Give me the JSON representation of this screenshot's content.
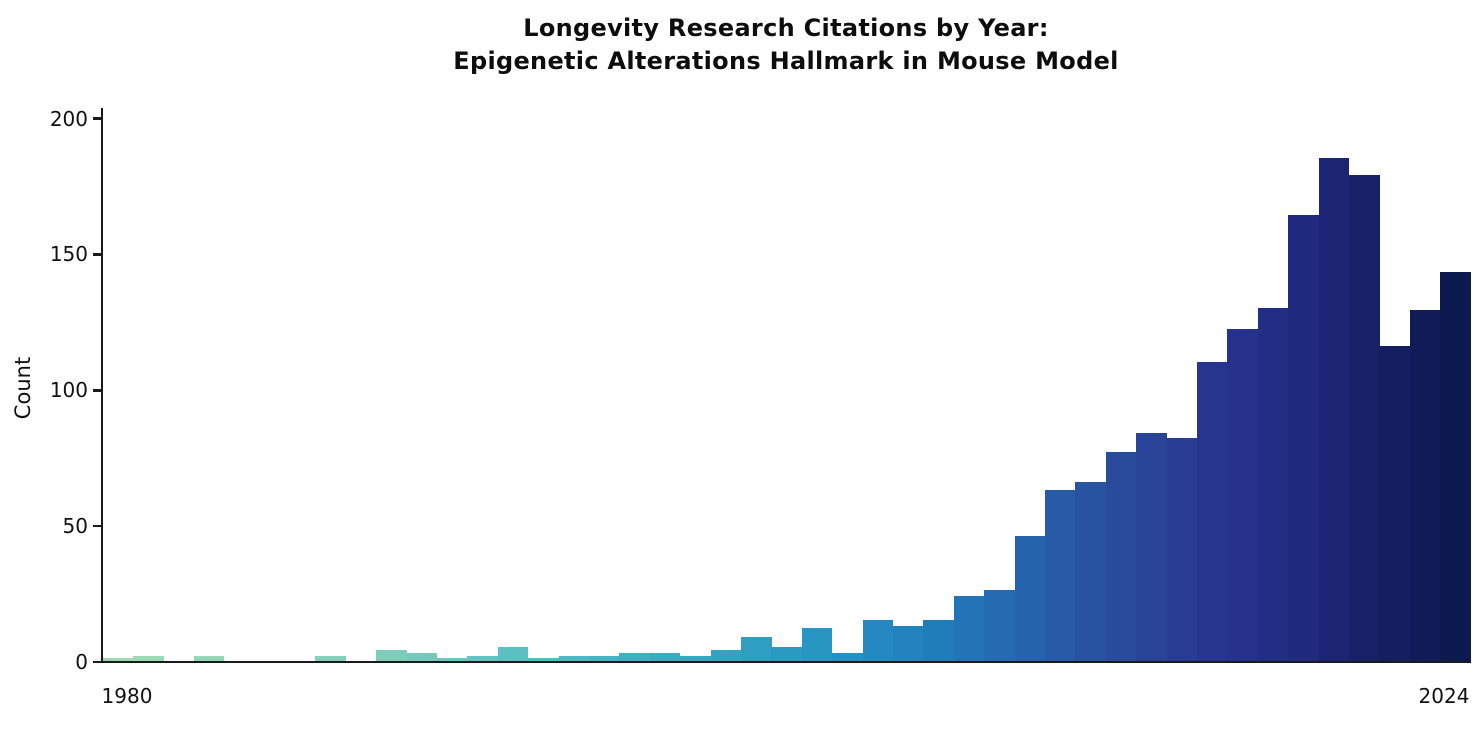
{
  "title": {
    "line1": "Longevity Research Citations by Year:",
    "line2": "Epigenetic Alterations Hallmark in Mouse Model"
  },
  "chart_data": {
    "type": "bar",
    "title": "Longevity Research Citations by Year:\nEpigenetic Alterations Hallmark in Mouse Model",
    "xlabel": "",
    "ylabel": "Count",
    "years": [
      1980,
      1981,
      1982,
      1983,
      1984,
      1985,
      1986,
      1987,
      1988,
      1989,
      1990,
      1991,
      1992,
      1993,
      1994,
      1995,
      1996,
      1997,
      1998,
      1999,
      2000,
      2001,
      2002,
      2003,
      2004,
      2005,
      2006,
      2007,
      2008,
      2009,
      2010,
      2011,
      2012,
      2013,
      2014,
      2015,
      2016,
      2017,
      2018,
      2019,
      2020,
      2021,
      2022,
      2023,
      2024
    ],
    "values": [
      1,
      2,
      0,
      2,
      0,
      0,
      0,
      2,
      0,
      4,
      3,
      1,
      2,
      5,
      1,
      2,
      2,
      3,
      3,
      2,
      4,
      9,
      5,
      12,
      3,
      15,
      13,
      15,
      24,
      26,
      46,
      63,
      66,
      77,
      84,
      82,
      110,
      122,
      130,
      164,
      185,
      179,
      116,
      129,
      143
    ],
    "ylim": [
      0,
      204
    ],
    "yticks": [
      0,
      50,
      100,
      150,
      200
    ],
    "xtick_labels": [
      "1980",
      "2024"
    ],
    "grid": false,
    "legend": "none",
    "bar_gap": 0,
    "colormap_stops": [
      {
        "t": 0.0,
        "color": "#a0dab4"
      },
      {
        "t": 0.205,
        "color": "#7dcdb9"
      },
      {
        "t": 0.295,
        "color": "#5cbfc2"
      },
      {
        "t": 0.386,
        "color": "#40afc2"
      },
      {
        "t": 0.477,
        "color": "#2e9fc0"
      },
      {
        "t": 0.545,
        "color": "#2590c5"
      },
      {
        "t": 0.614,
        "color": "#217cba"
      },
      {
        "t": 0.682,
        "color": "#2563ae"
      },
      {
        "t": 0.75,
        "color": "#2a4b9b"
      },
      {
        "t": 0.818,
        "color": "#273590"
      },
      {
        "t": 0.886,
        "color": "#202a7e"
      },
      {
        "t": 0.932,
        "color": "#172168"
      },
      {
        "t": 1.0,
        "color": "#0c1a50"
      }
    ]
  },
  "colors": {
    "background": "#ffffff",
    "axis": "#1a1a1a",
    "text": "#111111"
  }
}
